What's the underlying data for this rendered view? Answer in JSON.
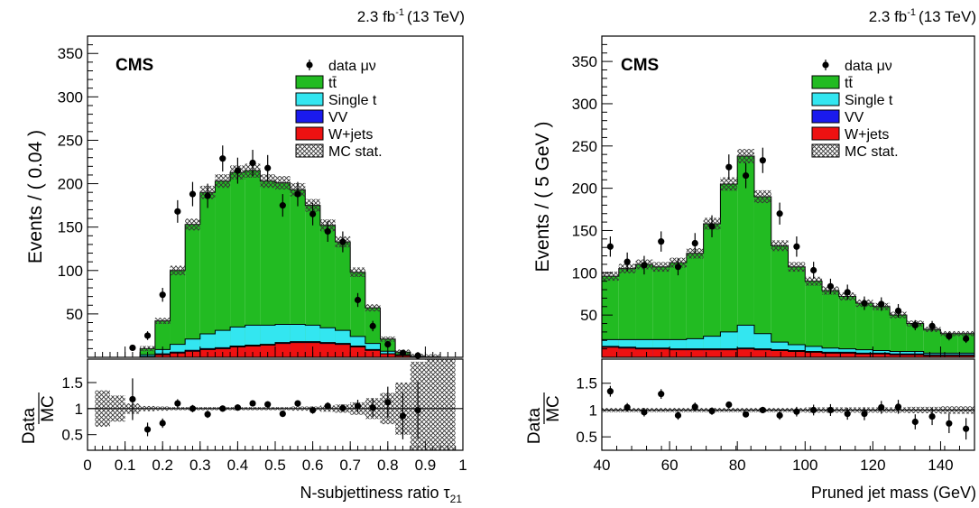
{
  "figure": {
    "lumi_text": "2.3 fb",
    "lumi_exp": "-1",
    "energy_text": "(13 TeV)",
    "cms_label": "CMS",
    "ratio_label_num": "Data",
    "ratio_label_den": "MC"
  },
  "legend": {
    "entries": [
      {
        "key": "data",
        "label": "data μν",
        "kind": "marker",
        "color": "#000000"
      },
      {
        "key": "ttbar",
        "label": "tt̄",
        "kind": "fill",
        "color": "#22bb22"
      },
      {
        "key": "singlet",
        "label": "Single t",
        "kind": "fill",
        "color": "#33e6f0"
      },
      {
        "key": "vv",
        "label": "VV",
        "kind": "fill",
        "color": "#1a1aee"
      },
      {
        "key": "wjets",
        "label": "W+jets",
        "kind": "fill",
        "color": "#ee1111"
      },
      {
        "key": "mcstat",
        "label": "MC stat.",
        "kind": "hatch",
        "color": "#555555"
      }
    ]
  },
  "chart_data": [
    {
      "type": "bar",
      "stacked": true,
      "ylabel": "Events / ( 0.04 )",
      "xlabel": "N-subjettiness ratio τ",
      "xlabel_sub": "21",
      "xlim": [
        0,
        1
      ],
      "ylim": [
        0,
        370
      ],
      "xticks": [
        "0",
        "0.1",
        "0.2",
        "0.3",
        "0.4",
        "0.5",
        "0.6",
        "0.7",
        "0.8",
        "0.9",
        "1"
      ],
      "yticks": [
        "50",
        "100",
        "150",
        "200",
        "250",
        "300",
        "350"
      ],
      "bin_edges": [
        0.02,
        0.06,
        0.1,
        0.14,
        0.18,
        0.22,
        0.26,
        0.3,
        0.34,
        0.38,
        0.42,
        0.46,
        0.5,
        0.54,
        0.58,
        0.62,
        0.66,
        0.7,
        0.74,
        0.78,
        0.82,
        0.86,
        0.9,
        0.94,
        0.98
      ],
      "series": [
        {
          "name": "W+jets",
          "key": "wjets",
          "values": [
            0,
            0,
            0,
            1,
            3,
            5,
            7,
            9,
            10,
            12,
            13,
            14,
            16,
            17,
            17,
            16,
            15,
            12,
            8,
            4,
            2,
            1,
            0.5,
            0
          ]
        },
        {
          "name": "VV",
          "key": "vv",
          "values": [
            0,
            0,
            0,
            0,
            1,
            1,
            1,
            1,
            1,
            1,
            1,
            1,
            1,
            1,
            1,
            1,
            1,
            1,
            1,
            0,
            0,
            0,
            0,
            0
          ]
        },
        {
          "name": "Single t",
          "key": "singlet",
          "values": [
            0,
            0,
            0,
            2,
            5,
            9,
            13,
            17,
            20,
            22,
            23,
            22,
            21,
            20,
            19,
            17,
            15,
            11,
            7,
            3,
            1,
            0,
            0,
            0
          ]
        },
        {
          "name": "tt̄",
          "key": "ttbar",
          "values": [
            0,
            0,
            0,
            7,
            33,
            85,
            132,
            163,
            172,
            178,
            178,
            166,
            163,
            155,
            138,
            118,
            102,
            74,
            41,
            14,
            3,
            0,
            0,
            0
          ]
        }
      ],
      "total": [
        0,
        0,
        0,
        10,
        42,
        100,
        153,
        190,
        203,
        213,
        215,
        203,
        201,
        193,
        175,
        152,
        133,
        98,
        57,
        21,
        6,
        1,
        0.5,
        0
      ],
      "data": {
        "x": [
          0.12,
          0.16,
          0.2,
          0.24,
          0.28,
          0.32,
          0.36,
          0.4,
          0.44,
          0.48,
          0.52,
          0.56,
          0.6,
          0.64,
          0.68,
          0.72,
          0.76,
          0.8,
          0.84,
          0.88
        ],
        "y": [
          11,
          25,
          72,
          168,
          188,
          186,
          229,
          215,
          224,
          218,
          175,
          188,
          165,
          145,
          133,
          66,
          36,
          15,
          5,
          2
        ],
        "err": [
          3,
          5,
          8,
          13,
          14,
          14,
          15,
          15,
          15,
          15,
          13,
          14,
          13,
          12,
          12,
          8,
          6,
          4,
          2,
          1
        ]
      },
      "ratio": {
        "ylim": [
          0.2,
          1.95
        ],
        "yticks": [
          "0.5",
          "1",
          "1.5"
        ],
        "x": [
          0.12,
          0.16,
          0.2,
          0.24,
          0.28,
          0.32,
          0.36,
          0.4,
          0.44,
          0.48,
          0.52,
          0.56,
          0.6,
          0.64,
          0.68,
          0.72,
          0.76,
          0.8,
          0.84,
          0.88
        ],
        "y": [
          1.18,
          0.6,
          0.72,
          1.1,
          1.0,
          0.89,
          1.0,
          1.02,
          1.1,
          1.08,
          0.9,
          1.1,
          0.97,
          1.05,
          1.01,
          1.05,
          1.02,
          1.12,
          0.86,
          0.97
        ],
        "err": [
          0.4,
          0.13,
          0.09,
          0.08,
          0.07,
          0.07,
          0.06,
          0.06,
          0.06,
          0.06,
          0.06,
          0.06,
          0.07,
          0.07,
          0.07,
          0.12,
          0.18,
          0.3,
          0.45,
          0.55
        ],
        "band": [
          0.35,
          0.25,
          0.1,
          0.05,
          0.04,
          0.03,
          0.03,
          0.03,
          0.03,
          0.03,
          0.03,
          0.03,
          0.03,
          0.04,
          0.04,
          0.06,
          0.08,
          0.12,
          0.2,
          0.3,
          0.5,
          0.9,
          0.95,
          0.95
        ]
      }
    },
    {
      "type": "bar",
      "stacked": true,
      "ylabel": "Events / ( 5 GeV )",
      "xlabel": "Pruned jet mass (GeV)",
      "xlabel_sub": "",
      "xlim": [
        40,
        150
      ],
      "ylim": [
        0,
        380
      ],
      "xticks": [
        "40",
        "60",
        "80",
        "100",
        "120",
        "140"
      ],
      "yticks": [
        "50",
        "100",
        "150",
        "200",
        "250",
        "300",
        "350"
      ],
      "bin_edges": [
        40,
        45,
        50,
        55,
        60,
        65,
        70,
        75,
        80,
        85,
        90,
        95,
        100,
        105,
        110,
        115,
        120,
        125,
        130,
        135,
        140,
        145,
        150
      ],
      "series": [
        {
          "name": "W+jets",
          "key": "wjets",
          "values": [
            12,
            11,
            10,
            10,
            9,
            9,
            9,
            9,
            10,
            9,
            8,
            7,
            6,
            5,
            5,
            4,
            4,
            3,
            3,
            2,
            2,
            2
          ]
        },
        {
          "name": "VV",
          "key": "vv",
          "values": [
            1,
            1,
            1,
            1,
            1,
            1,
            1,
            1,
            1,
            1,
            1,
            1,
            1,
            1,
            1,
            1,
            1,
            1,
            1,
            1,
            1,
            1
          ]
        },
        {
          "name": "Single t",
          "key": "singlet",
          "values": [
            8,
            9,
            10,
            10,
            11,
            12,
            15,
            20,
            27,
            18,
            9,
            7,
            6,
            5,
            4,
            4,
            3,
            3,
            3,
            2,
            2,
            2
          ]
        },
        {
          "name": "tt̄",
          "key": "ttbar",
          "values": [
            75,
            84,
            89,
            86,
            91,
            101,
            133,
            175,
            200,
            162,
            114,
            92,
            77,
            68,
            62,
            55,
            52,
            43,
            33,
            28,
            23,
            23
          ]
        }
      ],
      "total": [
        96,
        105,
        110,
        107,
        112,
        123,
        158,
        205,
        238,
        190,
        132,
        107,
        90,
        79,
        72,
        64,
        60,
        50,
        40,
        33,
        28,
        28
      ],
      "data": {
        "x": [
          42.5,
          47.5,
          52.5,
          57.5,
          62.5,
          67.5,
          72.5,
          77.5,
          82.5,
          87.5,
          92.5,
          97.5,
          102.5,
          107.5,
          112.5,
          117.5,
          122.5,
          127.5,
          132.5,
          137.5,
          142.5,
          147.5
        ],
        "y": [
          131,
          113,
          109,
          137,
          107,
          135,
          155,
          225,
          215,
          233,
          170,
          131,
          103,
          84,
          77,
          64,
          63,
          55,
          38,
          37,
          25,
          22
        ],
        "err": [
          12,
          11,
          11,
          12,
          10,
          12,
          13,
          15,
          15,
          15,
          13,
          12,
          10,
          9,
          9,
          8,
          8,
          8,
          6,
          6,
          5,
          5
        ]
      },
      "ratio": {
        "ylim": [
          0.25,
          1.95
        ],
        "yticks": [
          "0.5",
          "1",
          "1.5"
        ],
        "x": [
          42.5,
          47.5,
          52.5,
          57.5,
          62.5,
          67.5,
          72.5,
          77.5,
          82.5,
          87.5,
          92.5,
          97.5,
          102.5,
          107.5,
          112.5,
          117.5,
          122.5,
          127.5,
          132.5,
          137.5,
          142.5,
          147.5
        ],
        "y": [
          1.35,
          1.05,
          0.96,
          1.3,
          0.9,
          1.06,
          0.98,
          1.1,
          0.92,
          1.0,
          0.9,
          0.97,
          1.0,
          1.0,
          0.93,
          0.93,
          1.05,
          1.06,
          0.78,
          0.88,
          0.75,
          0.65
        ],
        "err": [
          0.1,
          0.08,
          0.08,
          0.09,
          0.08,
          0.08,
          0.07,
          0.06,
          0.05,
          0.06,
          0.08,
          0.09,
          0.1,
          0.11,
          0.11,
          0.12,
          0.12,
          0.13,
          0.14,
          0.16,
          0.18,
          0.2
        ],
        "band": [
          0.04,
          0.04,
          0.04,
          0.04,
          0.04,
          0.04,
          0.04,
          0.04,
          0.04,
          0.04,
          0.04,
          0.04,
          0.05,
          0.05,
          0.05,
          0.05,
          0.05,
          0.05,
          0.06,
          0.06,
          0.07,
          0.07
        ]
      }
    }
  ]
}
